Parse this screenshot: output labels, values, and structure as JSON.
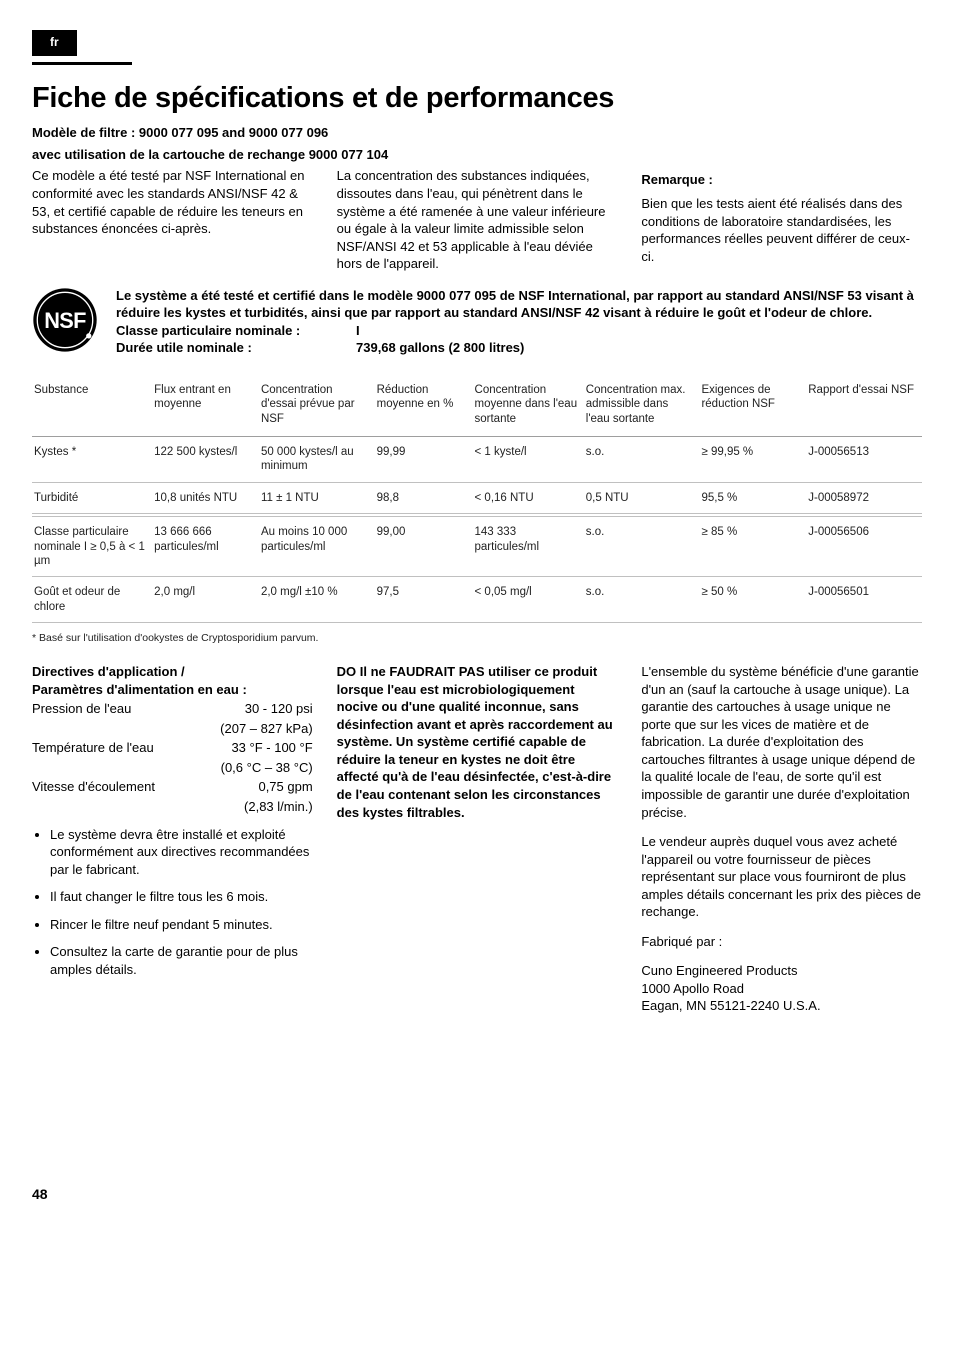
{
  "lang_tab": "fr",
  "title": "Fiche de spécifications et de performances",
  "model_line": "Modèle de filtre : 9000 077 095 and 9000 077 096",
  "cartridge_line": "avec utilisation de la cartouche de rechange 9000 077 104",
  "intro": {
    "c1": "Ce modèle a été testé par NSF International en conformité avec les standards ANSI/NSF 42 & 53, et certifié capable de réduire les teneurs en substances énoncées ci-après.",
    "c2": "La concentration des substances indiquées, dissoutes dans l'eau, qui pénètrent dans le système a été ramenée à une valeur inférieure ou égale à la valeur limite admissible selon NSF/ANSI 42 et 53 applicable à l'eau déviée hors de l'appareil.",
    "c3_head": "Remarque :",
    "c3": "Bien que les tests aient été réalisés dans des conditions de laboratoire standardisées, les performances réelles peuvent différer de ceux-ci."
  },
  "nsf": {
    "cert": "Le système a été testé et certifié dans le modèle 9000 077 095 de NSF International, par rapport au standard ANSI/NSF 53 visant à réduire les kystes et turbidités, ainsi que par rapport au standard ANSI/NSF 42 visant à réduire le goût et l'odeur de chlore.",
    "class_lbl": "Classe particulaire nominale :",
    "class_val": "I",
    "life_lbl": "Durée utile nominale :",
    "life_val": "739,68 gallons (2 800 litres)"
  },
  "table": {
    "headers": [
      "Substance",
      "Flux entrant en moyenne",
      "Concentration d'essai prévue par NSF",
      "Réduction moyenne en %",
      "Concentration moyenne dans l'eau sortante",
      "Concentration max. admissible dans l'eau sortante",
      "Exigences de réduction NSF",
      "Rapport d'essai NSF"
    ],
    "rows": [
      [
        "Kystes *",
        "122 500 kystes/l",
        "50 000 kystes/l au minimum",
        "99,99",
        "< 1 kyste/l",
        "s.o.",
        "≥ 99,95 %",
        "J-00056513"
      ],
      [
        "Turbidité",
        "10,8 unités NTU",
        "11 ± 1 NTU",
        "98,8",
        "< 0,16 NTU",
        "0,5 NTU",
        "95,5 %",
        "J-00058972"
      ]
    ],
    "rows2": [
      [
        "Classe particulaire nominale I ≥ 0,5 à < 1 µm",
        "13 666 666 particules/ml",
        "Au moins 10 000 particules/ml",
        "99,00",
        "143 333 particules/ml",
        "s.o.",
        "≥ 85 %",
        "J-00056506"
      ],
      [
        "Goût et odeur de chlore",
        "2,0 mg/l",
        "2,0 mg/l ±10 %",
        "97,5",
        "< 0,05 mg/l",
        "s.o.",
        "≥ 50 %",
        "J-00056501"
      ]
    ],
    "col_widths": [
      "13.5%",
      "12%",
      "13%",
      "11%",
      "12.5%",
      "13%",
      "12%",
      "13%"
    ]
  },
  "footnote": "* Basé sur l'utilisation d'ookystes de Cryptosporidium parvum.",
  "col_left": {
    "head": "Directives d'application /\nParamètres d'alimentation en eau :",
    "params": [
      {
        "l": "Pression de l'eau",
        "v": "30 - 120 psi"
      },
      {
        "l": "",
        "v": "(207 – 827 kPa)"
      },
      {
        "l": "Température de l'eau",
        "v": "33 °F - 100 °F"
      },
      {
        "l": "",
        "v": "(0,6 °C – 38 °C)"
      },
      {
        "l": "Vitesse d'écoulement",
        "v": "0,75 gpm"
      },
      {
        "l": "",
        "v": "(2,83 l/min.)"
      }
    ],
    "bullets": [
      "Le système devra être installé et exploité conformément aux directives recommandées par le fabricant.",
      "Il faut changer le filtre tous les 6 mois.",
      "Rincer le filtre neuf pendant 5 minutes.",
      "Consultez la carte de garantie pour de plus amples détails."
    ]
  },
  "col_mid": {
    "bold": "DO Il ne FAUDRAIT PAS utiliser ce produit lorsque l'eau est microbiologiquement nocive ou d'une qualité inconnue, sans désinfection avant et après raccordement au système. Un système certifié capable de réduire la teneur en kystes ne doit être affecté qu'à de l'eau désinfectée, c'est-à-dire de l'eau contenant selon les circonstances des kystes filtrables."
  },
  "col_right": {
    "p1": "L'ensemble du système bénéficie d'une garantie d'un an (sauf la cartouche à usage unique). La garantie des cartouches à usage unique ne porte que sur les vices de matière et de fabrication. La durée d'exploitation des cartouches filtrantes à usage unique dépend de la qualité locale de l'eau, de sorte qu'il est impossible de garantir une durée d'exploitation précise.",
    "p2": "Le vendeur auprès duquel vous avez acheté l'appareil ou votre fournisseur de pièces représentant sur place vous fourniront de plus amples détails concernant les prix des pièces de rechange.",
    "p3": "Fabriqué par :",
    "p4": "Cuno Engineered Products\n1000 Apollo Road\nEagan, MN 55121-2240 U.S.A."
  },
  "page": "48"
}
